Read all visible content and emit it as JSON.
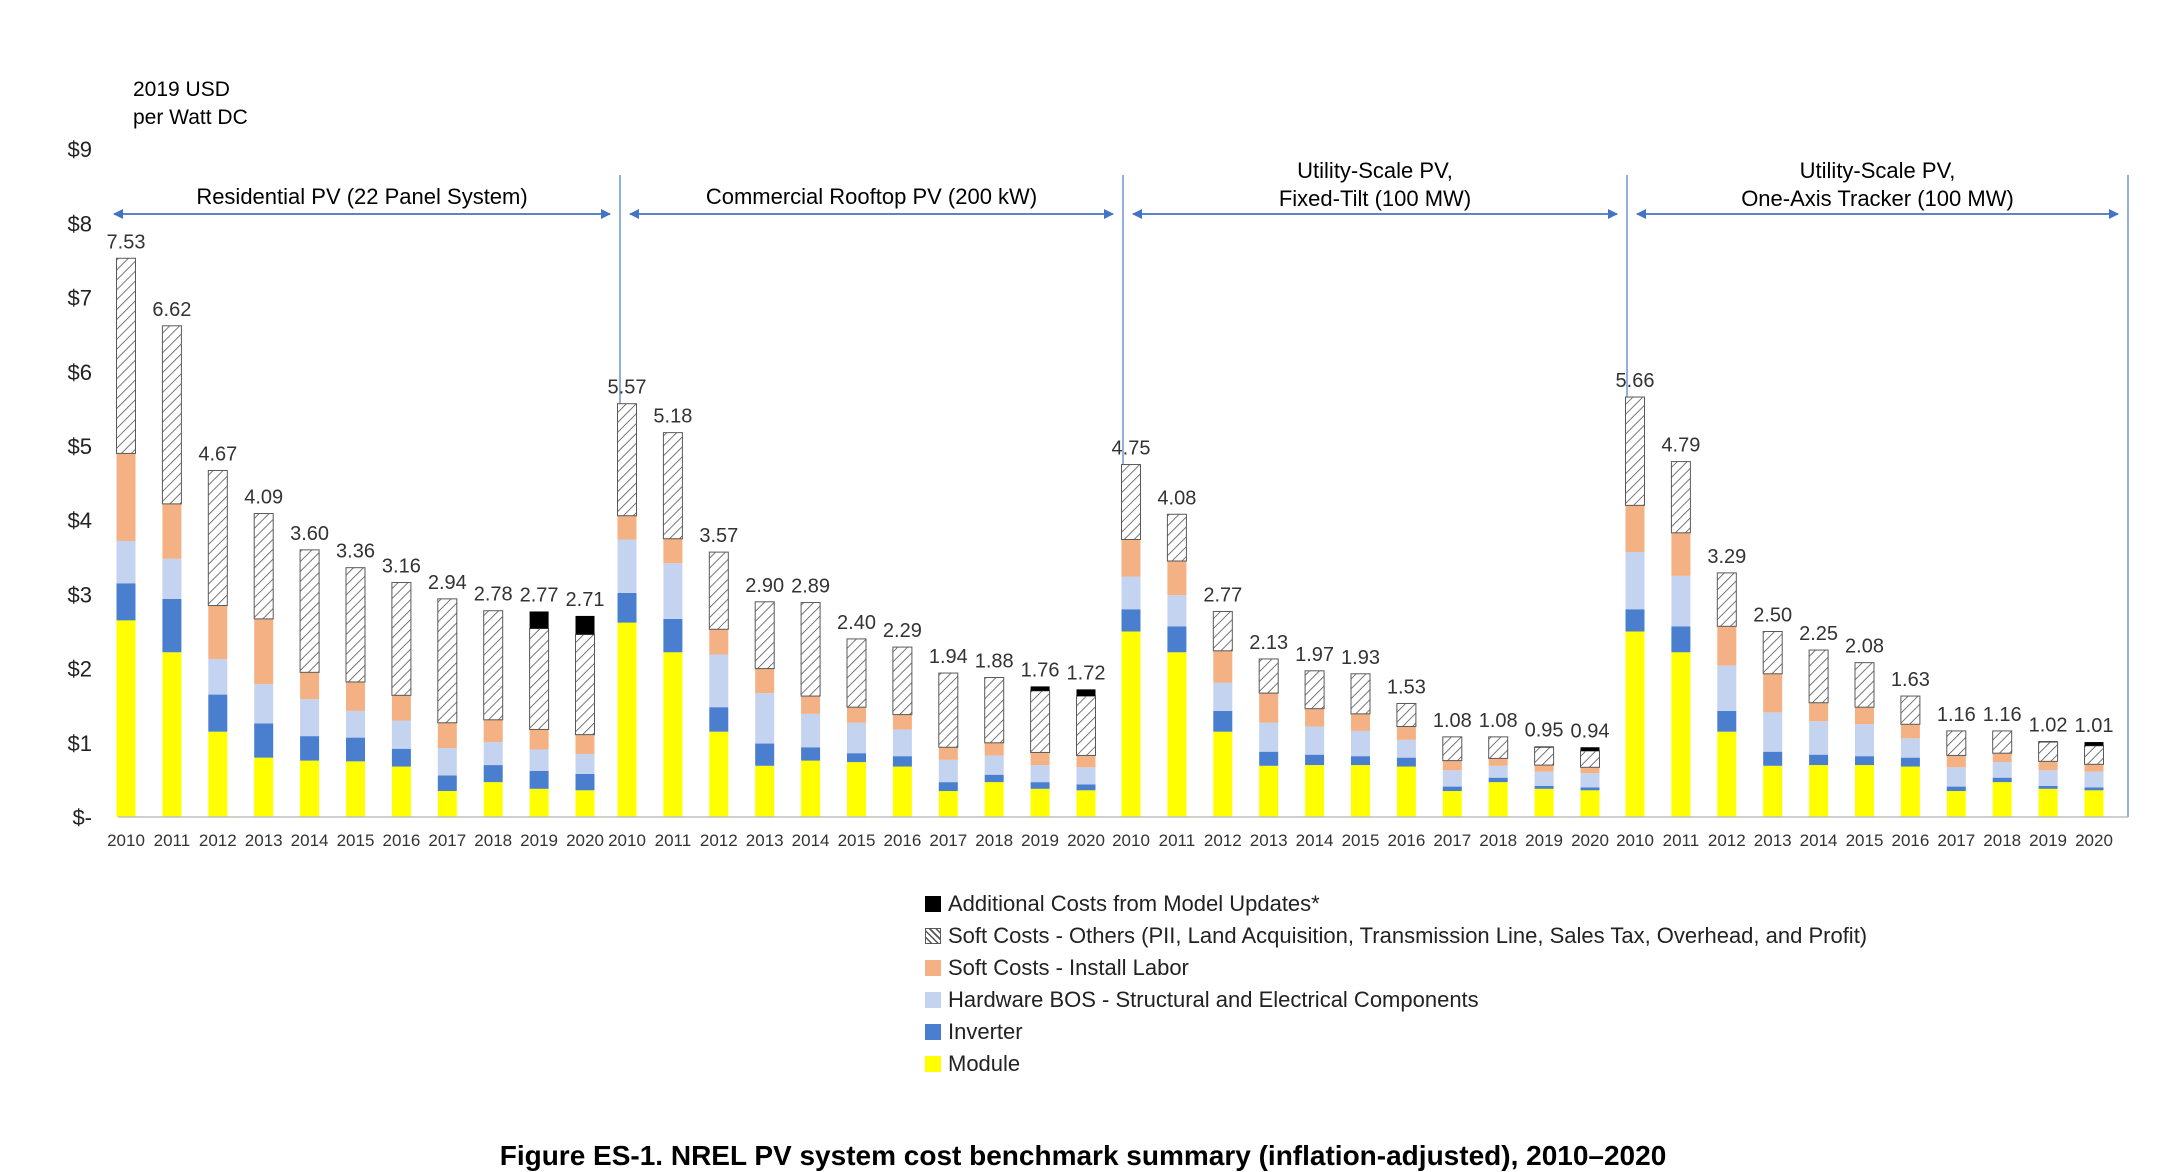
{
  "chart_data": {
    "type": "bar",
    "stacked": true,
    "ylabel_lines": [
      "2019 USD",
      "per Watt DC"
    ],
    "y_ticks": [
      {
        "value": 0,
        "label": "$-"
      },
      {
        "value": 1,
        "label": "$1"
      },
      {
        "value": 2,
        "label": "$2"
      },
      {
        "value": 3,
        "label": "$3"
      },
      {
        "value": 4,
        "label": "$4"
      },
      {
        "value": 5,
        "label": "$5"
      },
      {
        "value": 6,
        "label": "$6"
      },
      {
        "value": 7,
        "label": "$7"
      },
      {
        "value": 8,
        "label": "$8"
      },
      {
        "value": 9,
        "label": "$9"
      }
    ],
    "ylim": [
      0,
      9
    ],
    "years": [
      "2010",
      "2011",
      "2012",
      "2013",
      "2014",
      "2015",
      "2016",
      "2017",
      "2018",
      "2019",
      "2020"
    ],
    "series": [
      {
        "key": "module",
        "name": "Module",
        "color": "#FFFF00"
      },
      {
        "key": "inverter",
        "name": "Inverter",
        "color": "#4A7FD0"
      },
      {
        "key": "hardware_bos",
        "name": "Hardware BOS - Structural and Electrical Components",
        "color": "#C4D3EF"
      },
      {
        "key": "install_labor",
        "name": "Soft Costs - Install Labor",
        "color": "#F4B183"
      },
      {
        "key": "soft_others",
        "name": "Soft Costs - Others (PII, Land Acquisition, Transmission Line, Sales Tax, Overhead, and Profit)",
        "color": "#FFFFFF",
        "pattern": "hatch"
      },
      {
        "key": "model_updates",
        "name": "Additional Costs from Model Updates*",
        "color": "#000000"
      }
    ],
    "legend_order": [
      "model_updates",
      "soft_others",
      "install_labor",
      "hardware_bos",
      "inverter",
      "module"
    ],
    "groups": [
      {
        "title_lines": [
          "Residential PV (22 Panel System)"
        ],
        "totals": [
          "7.53",
          "6.62",
          "4.67",
          "4.09",
          "3.60",
          "3.36",
          "3.16",
          "2.94",
          "2.78",
          "2.77",
          "2.71"
        ],
        "segments": [
          [
            2.65,
            0.5,
            0.57,
            1.18,
            2.63,
            0
          ],
          [
            2.22,
            0.72,
            0.54,
            0.74,
            2.4,
            0
          ],
          [
            1.15,
            0.5,
            0.48,
            0.72,
            1.82,
            0
          ],
          [
            0.8,
            0.46,
            0.53,
            0.88,
            1.42,
            0
          ],
          [
            0.76,
            0.33,
            0.5,
            0.36,
            1.65,
            0
          ],
          [
            0.75,
            0.32,
            0.36,
            0.39,
            1.54,
            0
          ],
          [
            0.68,
            0.24,
            0.38,
            0.34,
            1.52,
            0
          ],
          [
            0.35,
            0.21,
            0.37,
            0.34,
            1.67,
            0
          ],
          [
            0.47,
            0.23,
            0.31,
            0.3,
            1.47,
            0
          ],
          [
            0.38,
            0.24,
            0.29,
            0.27,
            1.36,
            0.23
          ],
          [
            0.36,
            0.22,
            0.27,
            0.26,
            1.35,
            0.25
          ]
        ]
      },
      {
        "title_lines": [
          "Commercial Rooftop PV (200 kW)"
        ],
        "totals": [
          "5.57",
          "5.18",
          "3.57",
          "2.90",
          "2.89",
          "2.40",
          "2.29",
          "1.94",
          "1.88",
          "1.76",
          "1.72"
        ],
        "segments": [
          [
            2.62,
            0.4,
            0.72,
            0.32,
            1.51,
            0
          ],
          [
            2.22,
            0.45,
            0.75,
            0.33,
            1.43,
            0
          ],
          [
            1.15,
            0.33,
            0.71,
            0.34,
            1.04,
            0
          ],
          [
            0.69,
            0.3,
            0.68,
            0.33,
            0.9,
            0
          ],
          [
            0.76,
            0.18,
            0.45,
            0.24,
            1.26,
            0
          ],
          [
            0.74,
            0.12,
            0.41,
            0.21,
            0.92,
            0
          ],
          [
            0.68,
            0.14,
            0.36,
            0.2,
            0.91,
            0
          ],
          [
            0.35,
            0.12,
            0.3,
            0.17,
            1.0,
            0
          ],
          [
            0.47,
            0.1,
            0.26,
            0.17,
            0.88,
            0
          ],
          [
            0.38,
            0.09,
            0.23,
            0.17,
            0.83,
            0.06
          ],
          [
            0.36,
            0.08,
            0.23,
            0.16,
            0.8,
            0.09
          ]
        ]
      },
      {
        "title_lines": [
          "Utility-Scale PV,",
          "Fixed-Tilt (100 MW)"
        ],
        "totals": [
          "4.75",
          "4.08",
          "2.77",
          "2.13",
          "1.97",
          "1.93",
          "1.53",
          "1.08",
          "1.08",
          "0.95",
          "0.94"
        ],
        "segments": [
          [
            2.5,
            0.3,
            0.44,
            0.5,
            1.01,
            0
          ],
          [
            2.22,
            0.35,
            0.42,
            0.46,
            0.63,
            0
          ],
          [
            1.15,
            0.28,
            0.38,
            0.43,
            0.53,
            0
          ],
          [
            0.69,
            0.19,
            0.39,
            0.4,
            0.46,
            0
          ],
          [
            0.7,
            0.14,
            0.38,
            0.24,
            0.51,
            0
          ],
          [
            0.7,
            0.12,
            0.34,
            0.23,
            0.54,
            0
          ],
          [
            0.68,
            0.12,
            0.24,
            0.18,
            0.31,
            0
          ],
          [
            0.35,
            0.06,
            0.22,
            0.13,
            0.32,
            0
          ],
          [
            0.47,
            0.06,
            0.16,
            0.1,
            0.29,
            0
          ],
          [
            0.38,
            0.04,
            0.19,
            0.09,
            0.24,
            0.01
          ],
          [
            0.36,
            0.04,
            0.19,
            0.08,
            0.22,
            0.05
          ]
        ]
      },
      {
        "title_lines": [
          "Utility-Scale PV,",
          "One-Axis Tracker (100 MW)"
        ],
        "totals": [
          "5.66",
          "4.79",
          "3.29",
          "2.50",
          "2.25",
          "2.08",
          "1.63",
          "1.16",
          "1.16",
          "1.02",
          "1.01"
        ],
        "segments": [
          [
            2.5,
            0.3,
            0.77,
            0.63,
            1.46,
            0
          ],
          [
            2.22,
            0.35,
            0.68,
            0.58,
            0.96,
            0
          ],
          [
            1.15,
            0.28,
            0.61,
            0.53,
            0.72,
            0
          ],
          [
            0.69,
            0.19,
            0.53,
            0.52,
            0.57,
            0
          ],
          [
            0.7,
            0.14,
            0.45,
            0.25,
            0.71,
            0
          ],
          [
            0.7,
            0.12,
            0.43,
            0.23,
            0.6,
            0
          ],
          [
            0.68,
            0.12,
            0.26,
            0.19,
            0.38,
            0
          ],
          [
            0.35,
            0.06,
            0.26,
            0.16,
            0.33,
            0
          ],
          [
            0.47,
            0.06,
            0.21,
            0.12,
            0.3,
            0
          ],
          [
            0.38,
            0.04,
            0.21,
            0.12,
            0.26,
            0.01
          ],
          [
            0.36,
            0.04,
            0.21,
            0.1,
            0.25,
            0.05
          ]
        ]
      }
    ]
  },
  "figure_title": "Figure ES-1. NREL PV system cost benchmark summary (inflation-adjusted), 2010–2020"
}
